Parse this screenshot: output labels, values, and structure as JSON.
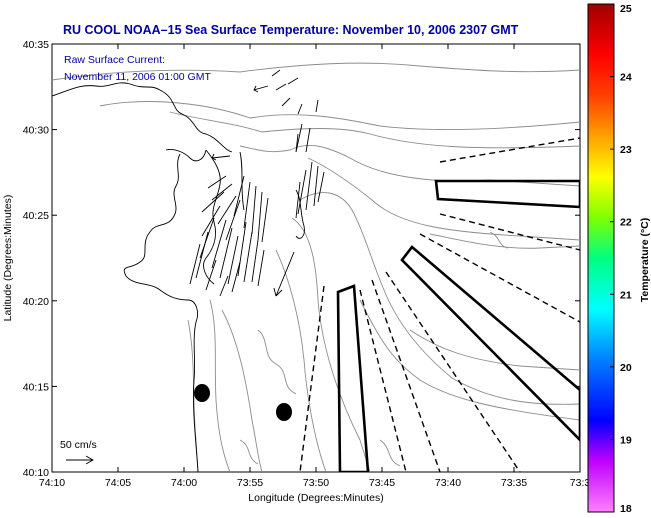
{
  "title": "RU COOL  NOAA–15  Sea Surface Temperature:  November 10, 2006 2307 GMT",
  "annotation": {
    "line1": "Raw Surface Current:",
    "line2": "November 11, 2006 01:00 GMT"
  },
  "scale_label": "50 cm/s",
  "x_axis": {
    "label": "Longitude (Degrees:Minutes)",
    "ticks": [
      "74:10",
      "74:05",
      "74:00",
      "73:55",
      "73:50",
      "73:45",
      "73:40",
      "73:35",
      "73:3"
    ]
  },
  "y_axis": {
    "label": "Latitude (Degrees:Minutes)",
    "ticks": [
      "40:35",
      "40:30",
      "40:25",
      "40:20",
      "40:15",
      "40:10"
    ]
  },
  "colorbar": {
    "label": "Temperature (°C)",
    "ticks": [
      "25",
      "24",
      "23",
      "22",
      "21",
      "20",
      "19",
      "18"
    ],
    "min": 18,
    "max": 25,
    "colors": [
      "#ff80ff",
      "#c000ff",
      "#0000ff",
      "#0080ff",
      "#00ffff",
      "#00ff80",
      "#80ff00",
      "#ffff00",
      "#ffa000",
      "#ff4000",
      "#ff0000",
      "#a00000"
    ]
  },
  "colors": {
    "title": "#0000a0",
    "contour": "#8c8c8c",
    "coast": "#000000"
  }
}
